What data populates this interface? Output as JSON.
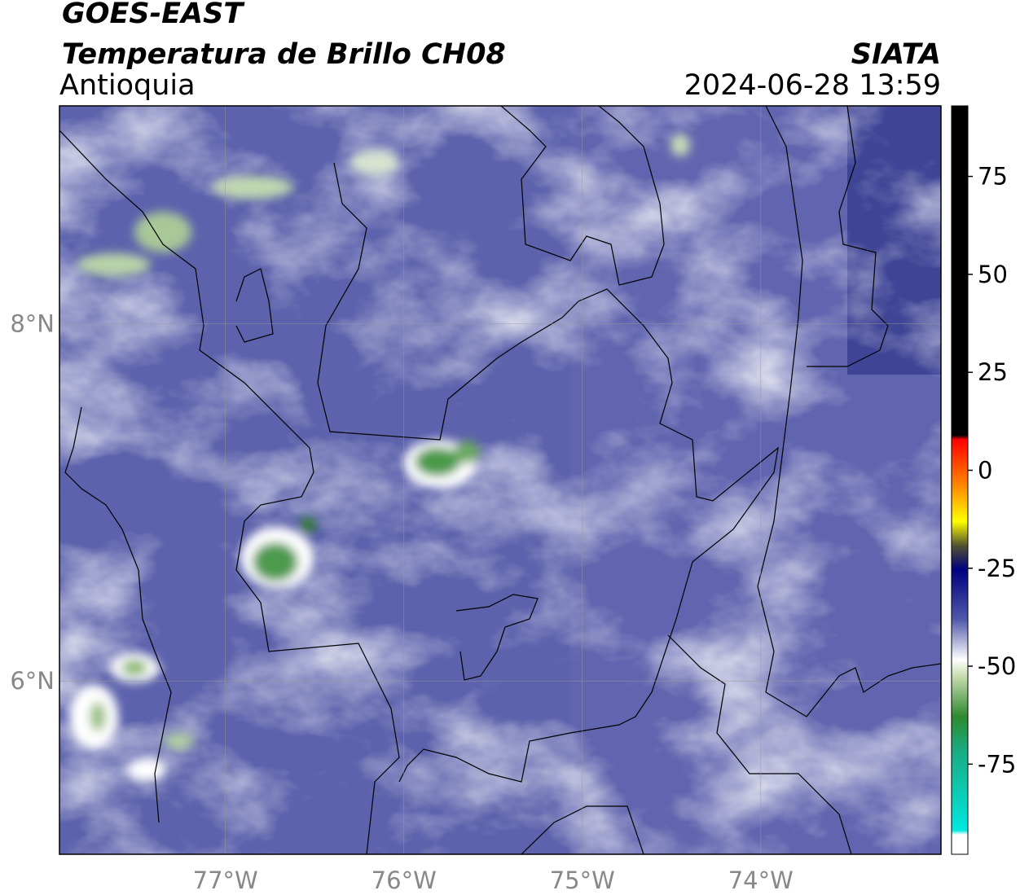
{
  "header": {
    "satellite": "GOES-EAST",
    "product": "Temperatura de Brillo CH08",
    "region": "Antioquia",
    "agency": "SIATA",
    "datetime": "2024-06-28 13:59"
  },
  "map": {
    "lon_lim": [
      -77.93,
      -72.99
    ],
    "lat_lim": [
      5.03,
      9.22
    ],
    "lon_ticks": [
      {
        "value": -77,
        "label": "77°W"
      },
      {
        "value": -76,
        "label": "76°W"
      },
      {
        "value": -75,
        "label": "75°W"
      },
      {
        "value": -74,
        "label": "74°W"
      }
    ],
    "lat_ticks": [
      {
        "value": 8,
        "label": "8°N"
      },
      {
        "value": 6,
        "label": "6°N"
      }
    ]
  },
  "colorbar": {
    "range": [
      -98,
      93
    ],
    "ticks": [
      75,
      50,
      25,
      0,
      -25,
      -50,
      -75
    ]
  }
}
